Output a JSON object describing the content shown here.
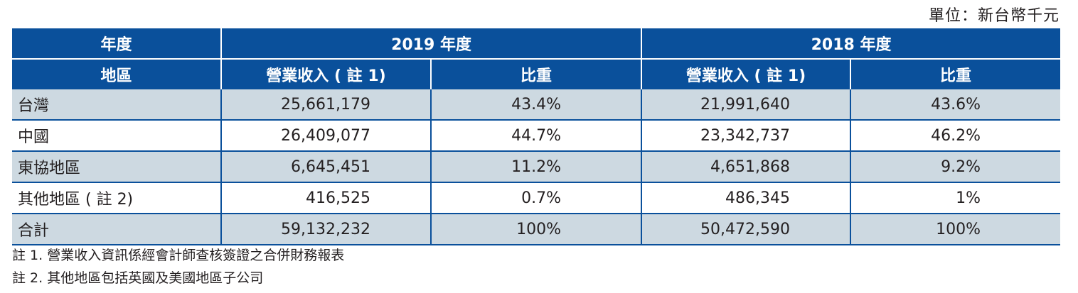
{
  "unit_label": "單位：新台幣千元",
  "header": {
    "year_label": "年度",
    "year_2019": "2019 年度",
    "year_2018": "2018 年度",
    "region_label": "地區",
    "revenue_label": "營業收入 ( 註 1)",
    "share_label": "比重"
  },
  "rows": [
    {
      "region": "台灣",
      "rev_2019": "25,661,179",
      "share_2019": "43.4%",
      "rev_2018": "21,991,640",
      "share_2018": "43.6%"
    },
    {
      "region": "中國",
      "rev_2019": "26,409,077",
      "share_2019": "44.7%",
      "rev_2018": "23,342,737",
      "share_2018": "46.2%"
    },
    {
      "region": "東協地區",
      "rev_2019": "6,645,451",
      "share_2019": "11.2%",
      "rev_2018": "4,651,868",
      "share_2018": "9.2%"
    },
    {
      "region": "其他地區 ( 註 2)",
      "rev_2019": "416,525",
      "share_2019": "0.7%",
      "rev_2018": "486,345",
      "share_2018": "1%"
    },
    {
      "region": "合計",
      "rev_2019": "59,132,232",
      "share_2019": "100%",
      "rev_2018": "50,472,590",
      "share_2018": "100%"
    }
  ],
  "notes": [
    "註 1. 營業收入資訊係經會計師查核簽證之合併財務報表",
    "註 2. 其他地區包括英國及美國地區子公司"
  ]
}
